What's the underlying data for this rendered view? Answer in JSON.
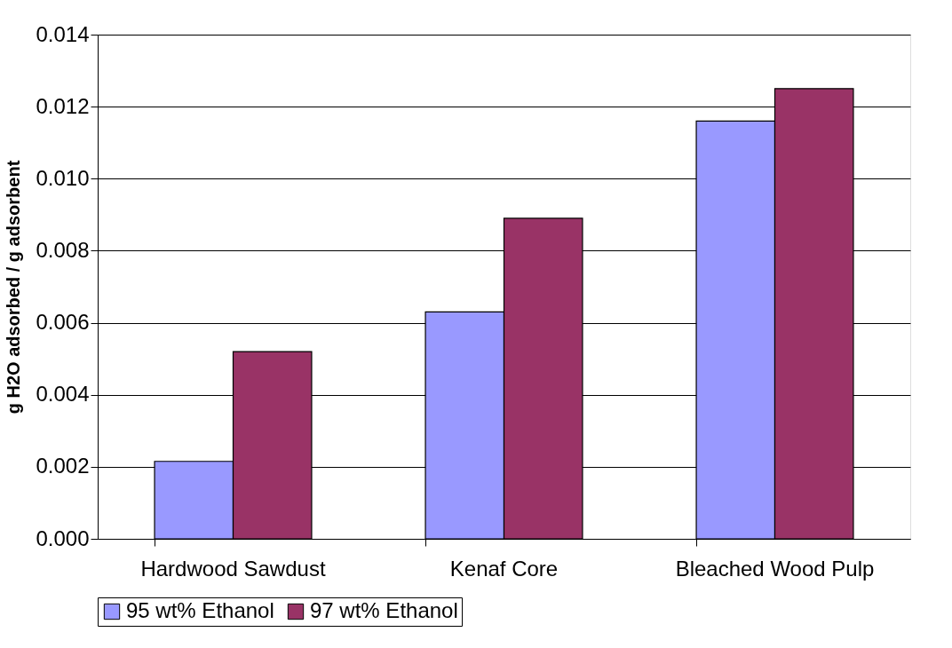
{
  "chart_data": {
    "type": "bar",
    "ylabel": "g H2O adsorbed / g adsorbent",
    "categories": [
      "Hardwood Sawdust",
      "Kenaf Core",
      "Bleached Wood Pulp"
    ],
    "series": [
      {
        "name": "95 wt% Ethanol",
        "color": "#9999ff",
        "values": [
          0.00215,
          0.0063,
          0.0116
        ]
      },
      {
        "name": "97 wt% Ethanol",
        "color": "#993366",
        "values": [
          0.0052,
          0.0089,
          0.0125
        ]
      }
    ],
    "ylim": [
      0,
      0.014
    ],
    "yticks": [
      {
        "value": 0,
        "label": "0.000"
      },
      {
        "value": 0.002,
        "label": "0.002"
      },
      {
        "value": 0.004,
        "label": "0.004"
      },
      {
        "value": 0.006,
        "label": "0.006"
      },
      {
        "value": 0.008,
        "label": "0.008"
      },
      {
        "value": 0.01,
        "label": "0.010"
      },
      {
        "value": 0.012,
        "label": "0.012"
      },
      {
        "value": 0.014,
        "label": "0.014"
      }
    ],
    "grid": "y",
    "legend": "bottom"
  }
}
